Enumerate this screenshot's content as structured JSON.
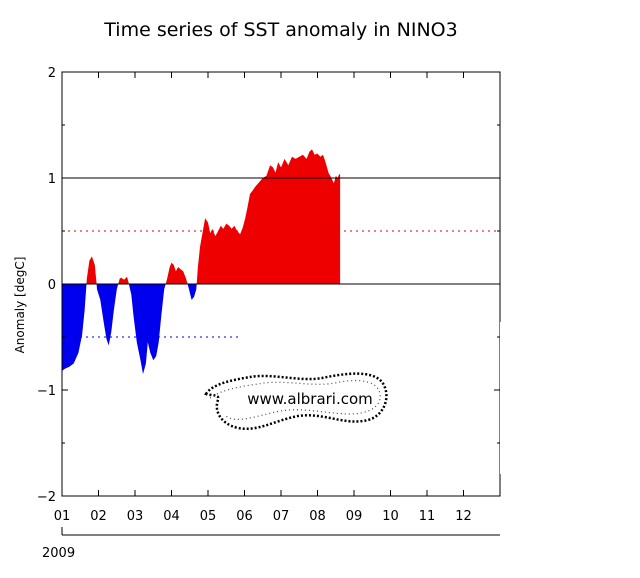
{
  "chart_data": {
    "type": "area",
    "title": "Time series of SST anomaly in NINO3",
    "xlabel": "",
    "ylabel": "Anomaly [degC]",
    "ylim": [
      -2,
      2
    ],
    "y_ticks": [
      2,
      1,
      0,
      -1,
      -2
    ],
    "x_ticks": [
      "01",
      "02",
      "03",
      "04",
      "05",
      "06",
      "07",
      "08",
      "09",
      "10",
      "11",
      "12"
    ],
    "x_year_label": "2009",
    "x_units": "month of 2009",
    "xlim": [
      1,
      13
    ],
    "reference_lines": [
      {
        "value": 1,
        "style": "solid",
        "color": "#000000"
      },
      {
        "value": 0,
        "style": "solid",
        "color": "#000000"
      },
      {
        "value": 0.5,
        "style": "dotted",
        "color": "#e00000",
        "x_range": [
          1,
          13
        ]
      },
      {
        "value": -0.5,
        "style": "dotted",
        "color": "#0000cc",
        "x_range": [
          1,
          5.9
        ]
      }
    ],
    "positive_color": "#ee0000",
    "negative_color": "#0000ee",
    "series": [
      {
        "x": [
          1.0,
          1.08,
          1.2,
          1.32,
          1.45,
          1.55,
          1.62,
          1.68,
          1.75,
          1.82,
          1.9,
          1.96,
          2.05,
          2.15,
          2.22,
          2.28,
          2.35,
          2.42,
          2.5,
          2.58,
          2.62,
          2.7,
          2.78,
          2.82,
          2.9,
          2.96,
          3.05,
          3.15,
          3.22,
          3.3,
          3.35,
          3.42,
          3.5,
          3.58,
          3.65,
          3.72,
          3.8,
          3.88,
          3.95,
          4.0,
          4.06,
          4.12,
          4.18,
          4.25,
          4.32,
          4.4,
          4.48,
          4.55,
          4.62,
          4.68,
          4.72,
          4.78,
          4.85,
          4.92,
          5.0,
          5.06,
          5.12,
          5.2,
          5.28,
          5.35,
          5.42,
          5.5,
          5.58,
          5.65,
          5.72,
          5.8,
          5.88,
          5.95,
          6.02,
          6.08,
          6.15,
          6.22,
          6.3,
          6.4,
          6.5,
          6.6,
          6.7,
          6.78,
          6.85,
          6.92,
          7.0,
          7.1,
          7.2,
          7.3,
          7.4,
          7.5,
          7.6,
          7.7,
          7.78,
          7.85,
          7.92,
          8.0,
          8.08,
          8.15,
          8.22,
          8.3,
          8.38,
          8.45,
          8.5,
          8.55,
          8.6,
          8.62
        ],
        "values": [
          -0.82,
          -0.8,
          -0.78,
          -0.75,
          -0.65,
          -0.48,
          -0.25,
          0.05,
          0.22,
          0.26,
          0.18,
          -0.05,
          -0.15,
          -0.38,
          -0.52,
          -0.58,
          -0.45,
          -0.25,
          -0.05,
          0.05,
          0.06,
          0.04,
          0.07,
          0.02,
          -0.1,
          -0.3,
          -0.55,
          -0.72,
          -0.85,
          -0.75,
          -0.55,
          -0.65,
          -0.72,
          -0.68,
          -0.55,
          -0.3,
          -0.05,
          0.05,
          0.16,
          0.2,
          0.18,
          0.12,
          0.16,
          0.14,
          0.12,
          0.05,
          -0.05,
          -0.15,
          -0.12,
          -0.05,
          0.15,
          0.35,
          0.48,
          0.62,
          0.58,
          0.48,
          0.52,
          0.45,
          0.5,
          0.55,
          0.52,
          0.57,
          0.55,
          0.52,
          0.55,
          0.5,
          0.47,
          0.53,
          0.62,
          0.72,
          0.85,
          0.88,
          0.92,
          0.96,
          1.0,
          1.02,
          1.12,
          1.1,
          1.05,
          1.15,
          1.1,
          1.18,
          1.12,
          1.2,
          1.18,
          1.2,
          1.22,
          1.18,
          1.25,
          1.27,
          1.22,
          1.23,
          1.2,
          1.22,
          1.15,
          1.05,
          1.0,
          0.95,
          1.02,
          1.0,
          1.04,
          1.03
        ]
      }
    ],
    "grid": false,
    "legend": "none",
    "watermark_text": "www.albrari.com"
  }
}
